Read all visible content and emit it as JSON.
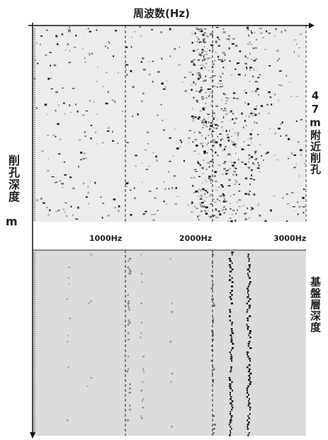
{
  "title": "周波数(Hz)",
  "depth_label": "削孔深度",
  "depth_unit": "m",
  "frequency_labels": [
    "1000Hz",
    "2000Hz",
    "3000Hz"
  ],
  "panels": [
    {
      "label": "47m附近削孔"
    },
    {
      "label": "基盤層深度"
    }
  ]
}
